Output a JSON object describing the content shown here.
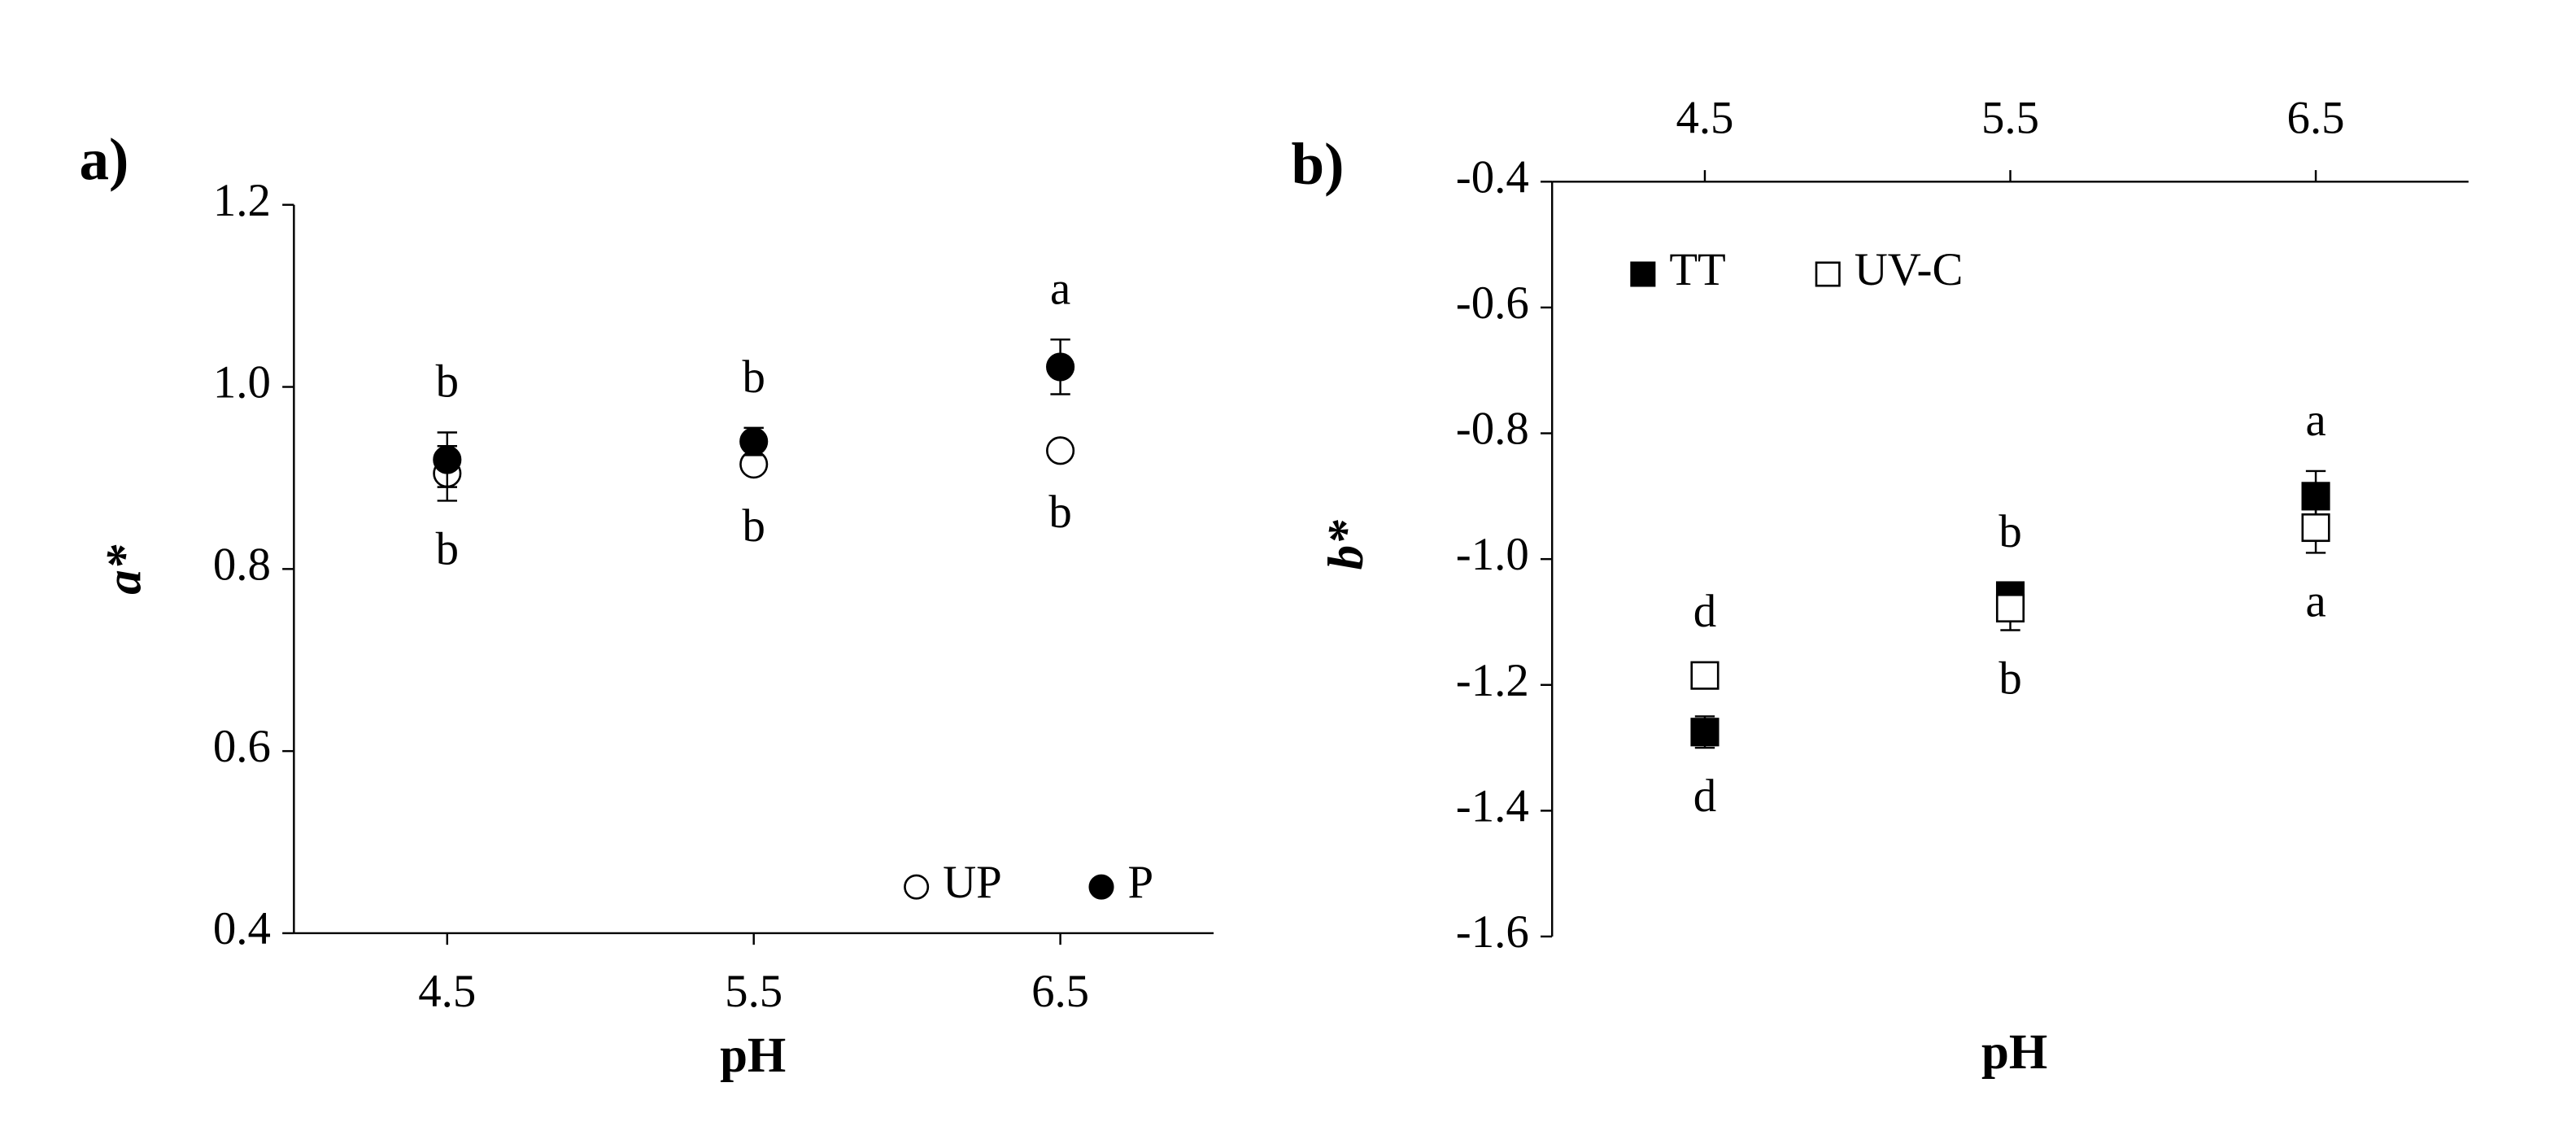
{
  "chart_data": [
    {
      "type": "scatter",
      "panel": "a)",
      "y_label": "a*",
      "x_label": "pH",
      "categories": [
        "4.5",
        "5.5",
        "6.5"
      ],
      "ylim": [
        0.4,
        1.2
      ],
      "yticks": [
        0.4,
        0.6,
        0.8,
        {
          "value": 1,
          "label": "1.0"
        },
        1.2
      ],
      "x_axis_position": "bottom",
      "legend": "lower right",
      "series": [
        {
          "name": "UP",
          "marker": "circle",
          "filled": false,
          "color": "#000",
          "values": [
            0.905,
            0.915,
            0.93
          ],
          "errors": [
            0.03,
            0.01,
            0.005
          ],
          "letters": [
            "b",
            "b",
            "b"
          ]
        },
        {
          "name": "P",
          "marker": "circle",
          "filled": true,
          "color": "#000",
          "values": [
            0.92,
            0.94,
            1.022
          ],
          "errors": [
            0.03,
            0.015,
            0.03
          ],
          "letters": [
            "b",
            "b",
            "a"
          ]
        }
      ]
    },
    {
      "type": "scatter",
      "panel": "b)",
      "y_label": "b*",
      "x_label": "pH",
      "categories": [
        "4.5",
        "5.5",
        "6.5"
      ],
      "ylim": [
        -1.6,
        -0.4
      ],
      "yticks": [
        -1.6,
        -1.4,
        -1.2,
        {
          "value": -1,
          "label": "-1.0"
        },
        -0.8,
        -0.6,
        -0.4
      ],
      "x_axis_position": "top",
      "legend": "upper left",
      "series": [
        {
          "name": "TT",
          "marker": "square",
          "filled": true,
          "color": "#000",
          "values": [
            -1.275,
            -1.058,
            -0.9
          ],
          "errors": [
            0.025,
            0.015,
            0.04
          ],
          "letters": [
            "d",
            "b",
            "a"
          ]
        },
        {
          "name": "UV-C",
          "marker": "square",
          "filled": false,
          "color": "#000",
          "values": [
            -1.185,
            -1.078,
            -0.95
          ],
          "errors": [
            0.01,
            0.035,
            0.04
          ],
          "letters": [
            "d",
            "b",
            "a"
          ]
        }
      ]
    }
  ]
}
